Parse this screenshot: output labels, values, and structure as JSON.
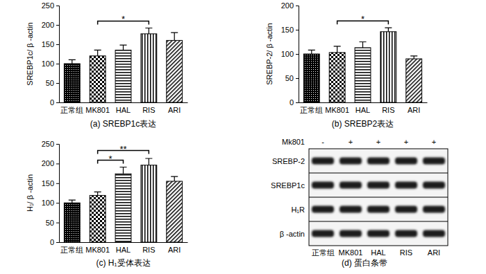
{
  "chart_data": [
    {
      "type": "bar",
      "title": "(a) SREBP1c表达",
      "y_label": "SREBP1c/ β -actin",
      "categories": [
        "正常组",
        "MK801",
        "HAL",
        "RIS",
        "ARI"
      ],
      "values": [
        100,
        120,
        135,
        177,
        160
      ],
      "errors": [
        10,
        15,
        13,
        15,
        20
      ],
      "color": "#000000",
      "ylim": [
        0,
        250
      ],
      "yticks": [
        0,
        50,
        100,
        150,
        200,
        250
      ],
      "grid": false,
      "annotations": [
        {
          "from": "MK801",
          "to": "RIS",
          "text": "*"
        }
      ]
    },
    {
      "type": "bar",
      "title": "(b) SREBP2表达",
      "y_label": "SREBP-2/ β -actin",
      "categories": [
        "正常组",
        "MK801",
        "HAL",
        "RIS",
        "ARI"
      ],
      "values": [
        100,
        103,
        113,
        146,
        90
      ],
      "errors": [
        8,
        13,
        12,
        8,
        6
      ],
      "color": "#000000",
      "ylim": [
        0,
        200
      ],
      "yticks": [
        0,
        50,
        100,
        150,
        200
      ],
      "grid": false,
      "annotations": [
        {
          "from": "MK801",
          "to": "RIS",
          "text": "*"
        }
      ]
    },
    {
      "type": "bar",
      "title": "(c) H₁受体表达",
      "y_label": "H₁/ β -actin",
      "categories": [
        "正常组",
        "MK801",
        "HAL",
        "RIS",
        "ARI"
      ],
      "values": [
        100,
        119,
        174,
        196,
        155
      ],
      "errors": [
        7,
        9,
        17,
        17,
        12
      ],
      "color": "#000000",
      "ylim": [
        0,
        250
      ],
      "yticks": [
        0,
        50,
        100,
        150,
        200,
        250
      ],
      "grid": false,
      "annotations": [
        {
          "from": "MK801",
          "to": "HAL",
          "text": "*"
        },
        {
          "from": "MK801",
          "to": "RIS",
          "text": "**"
        }
      ]
    }
  ],
  "blot": {
    "title": "(d) 蛋白条带",
    "treatment_label": "Mk801",
    "treatment": [
      "-",
      "+",
      "+",
      "+",
      "+"
    ],
    "lanes": [
      "正常组",
      "MK801",
      "HAL",
      "RIS",
      "ARI"
    ],
    "rows": [
      "SREBP-2",
      "SREBP1c",
      "H₁R",
      "β -actin"
    ]
  }
}
